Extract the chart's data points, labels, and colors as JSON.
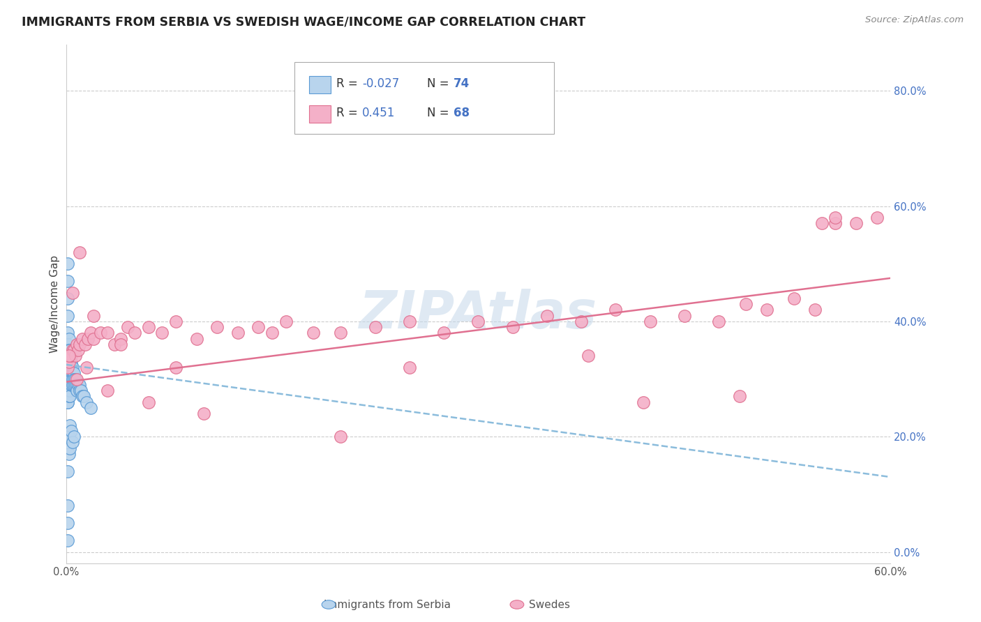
{
  "title": "IMMIGRANTS FROM SERBIA VS SWEDISH WAGE/INCOME GAP CORRELATION CHART",
  "source": "Source: ZipAtlas.com",
  "ylabel": "Wage/Income Gap",
  "xlim": [
    0.0,
    0.6
  ],
  "ylim": [
    -0.02,
    0.88
  ],
  "right_ytick_vals": [
    0.0,
    0.2,
    0.4,
    0.6,
    0.8
  ],
  "right_ytick_labels": [
    "0.0%",
    "20.0%",
    "40.0%",
    "60.0%",
    "80.0%"
  ],
  "xtick_vals": [
    0.0,
    0.1,
    0.2,
    0.3,
    0.4,
    0.5,
    0.6
  ],
  "xtick_labels": [
    "0.0%",
    "",
    "",
    "",
    "",
    "",
    "60.0%"
  ],
  "series1_label": "Immigrants from Serbia",
  "series2_label": "Swedes",
  "series1_fill": "#b8d4ed",
  "series2_fill": "#f4b0c8",
  "series1_edge": "#5b9bd5",
  "series2_edge": "#e07090",
  "trendline1_color": "#8bbcdc",
  "trendline2_color": "#e07090",
  "watermark_color": "#c5d8ea",
  "legend_r1": "-0.027",
  "legend_n1": "74",
  "legend_r2": "0.451",
  "legend_n2": "68",
  "grid_color": "#cccccc",
  "bg_color": "#ffffff",
  "title_color": "#222222",
  "source_color": "#888888",
  "axis_label_color": "#444444",
  "tick_color": "#555555",
  "right_tick_color": "#4472c4",
  "legend_text_color": "#333333",
  "legend_num_color": "#4472c4",
  "bottom_label_color": "#555555",
  "serbia_x": [
    0.001,
    0.001,
    0.001,
    0.001,
    0.001,
    0.001,
    0.001,
    0.001,
    0.001,
    0.001,
    0.001,
    0.001,
    0.001,
    0.001,
    0.001,
    0.001,
    0.001,
    0.001,
    0.001,
    0.001,
    0.002,
    0.002,
    0.002,
    0.002,
    0.002,
    0.002,
    0.002,
    0.002,
    0.002,
    0.002,
    0.003,
    0.003,
    0.003,
    0.003,
    0.003,
    0.003,
    0.003,
    0.003,
    0.003,
    0.004,
    0.004,
    0.004,
    0.004,
    0.004,
    0.005,
    0.005,
    0.005,
    0.005,
    0.006,
    0.006,
    0.006,
    0.007,
    0.007,
    0.008,
    0.008,
    0.009,
    0.01,
    0.01,
    0.011,
    0.012,
    0.013,
    0.015,
    0.018,
    0.001,
    0.001,
    0.001,
    0.001,
    0.002,
    0.002,
    0.003,
    0.003,
    0.004,
    0.005,
    0.006
  ],
  "serbia_y": [
    0.5,
    0.47,
    0.44,
    0.41,
    0.38,
    0.36,
    0.34,
    0.33,
    0.32,
    0.31,
    0.3,
    0.3,
    0.29,
    0.29,
    0.28,
    0.28,
    0.27,
    0.27,
    0.26,
    0.26,
    0.37,
    0.35,
    0.34,
    0.33,
    0.32,
    0.31,
    0.3,
    0.29,
    0.28,
    0.27,
    0.35,
    0.34,
    0.33,
    0.32,
    0.31,
    0.3,
    0.29,
    0.28,
    0.27,
    0.33,
    0.32,
    0.31,
    0.3,
    0.29,
    0.32,
    0.31,
    0.3,
    0.29,
    0.31,
    0.3,
    0.29,
    0.3,
    0.29,
    0.29,
    0.28,
    0.29,
    0.29,
    0.28,
    0.28,
    0.27,
    0.27,
    0.26,
    0.25,
    0.14,
    0.08,
    0.05,
    0.02,
    0.2,
    0.17,
    0.22,
    0.18,
    0.21,
    0.19,
    0.2
  ],
  "swedes_x": [
    0.001,
    0.002,
    0.003,
    0.004,
    0.005,
    0.006,
    0.007,
    0.008,
    0.009,
    0.01,
    0.012,
    0.014,
    0.016,
    0.018,
    0.02,
    0.025,
    0.03,
    0.035,
    0.04,
    0.045,
    0.05,
    0.06,
    0.07,
    0.08,
    0.095,
    0.11,
    0.125,
    0.14,
    0.16,
    0.18,
    0.2,
    0.225,
    0.25,
    0.275,
    0.3,
    0.325,
    0.35,
    0.375,
    0.4,
    0.425,
    0.45,
    0.475,
    0.495,
    0.51,
    0.53,
    0.545,
    0.56,
    0.575,
    0.59,
    0.002,
    0.005,
    0.01,
    0.02,
    0.04,
    0.08,
    0.15,
    0.25,
    0.38,
    0.49,
    0.55,
    0.008,
    0.015,
    0.03,
    0.06,
    0.1,
    0.2,
    0.42,
    0.56
  ],
  "swedes_y": [
    0.32,
    0.33,
    0.34,
    0.34,
    0.35,
    0.35,
    0.34,
    0.36,
    0.35,
    0.36,
    0.37,
    0.36,
    0.37,
    0.38,
    0.37,
    0.38,
    0.38,
    0.36,
    0.37,
    0.39,
    0.38,
    0.39,
    0.38,
    0.4,
    0.37,
    0.39,
    0.38,
    0.39,
    0.4,
    0.38,
    0.38,
    0.39,
    0.4,
    0.38,
    0.4,
    0.39,
    0.41,
    0.4,
    0.42,
    0.4,
    0.41,
    0.4,
    0.43,
    0.42,
    0.44,
    0.42,
    0.57,
    0.57,
    0.58,
    0.34,
    0.45,
    0.52,
    0.41,
    0.36,
    0.32,
    0.38,
    0.32,
    0.34,
    0.27,
    0.57,
    0.3,
    0.32,
    0.28,
    0.26,
    0.24,
    0.2,
    0.26,
    0.58
  ],
  "trendline1_x0": 0.0,
  "trendline1_y0": 0.325,
  "trendline1_x1": 0.6,
  "trendline1_y1": 0.13,
  "trendline2_x0": 0.0,
  "trendline2_y0": 0.295,
  "trendline2_x1": 0.6,
  "trendline2_y1": 0.475
}
